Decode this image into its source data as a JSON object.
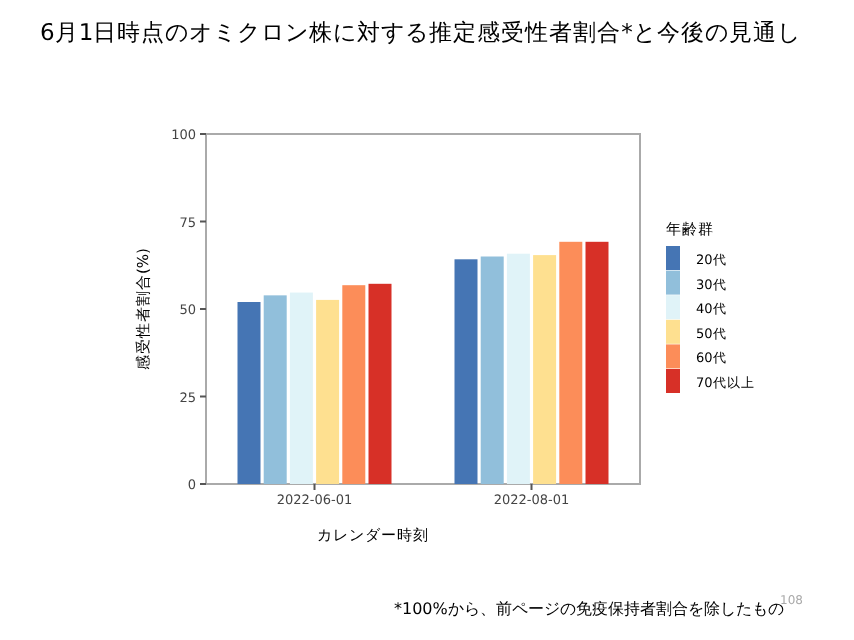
{
  "chart_data": {
    "type": "bar",
    "title": "6月1日時点のオミクロン株に対する推定感受性者割合*と今後の見通し",
    "xlabel": "カレンダー時刻",
    "ylabel": "感受性者割合(%)",
    "legend_title": "年齢群",
    "categories": [
      "2022-06-01",
      "2022-08-01"
    ],
    "series": [
      {
        "name": "20代",
        "color": "#4575b4",
        "values": [
          52.0,
          64.2
        ]
      },
      {
        "name": "30代",
        "color": "#91bfdb",
        "values": [
          53.9,
          65.0
        ]
      },
      {
        "name": "40代",
        "color": "#e0f3f8",
        "values": [
          54.7,
          65.8
        ]
      },
      {
        "name": "50代",
        "color": "#fee090",
        "values": [
          52.6,
          65.4
        ]
      },
      {
        "name": "60代",
        "color": "#fc8d59",
        "values": [
          56.8,
          69.2
        ]
      },
      {
        "name": "70代以上",
        "color": "#d73027",
        "values": [
          57.2,
          69.2
        ]
      }
    ],
    "ylim": [
      0,
      100
    ],
    "yticks": [
      0,
      25,
      50,
      75,
      100
    ],
    "grid": false,
    "legend": "right",
    "annotations": [
      "*100%から、前ページの免疫保持者割合を除したもの",
      "108"
    ]
  }
}
